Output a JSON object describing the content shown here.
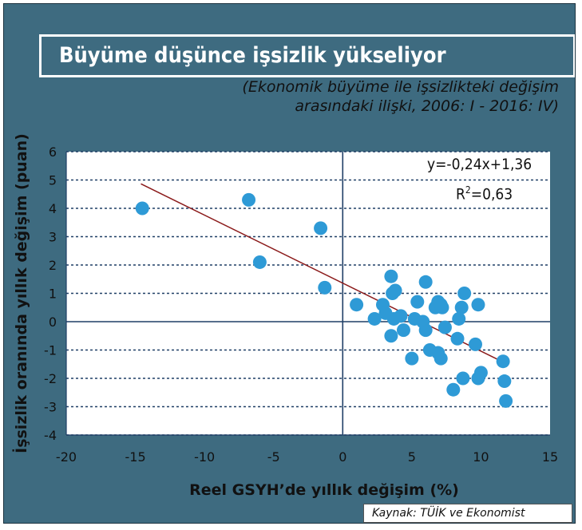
{
  "title": "Büyüme düşünce işsizlik yükseliyor",
  "subtitle_lines": [
    "(Ekonomik büyüme ile işsizlikteki değişim",
    "arasındaki ilişki, 2006: I - 2016: IV)"
  ],
  "source": "Kaynak: TÜİK ve Ekonomist",
  "colors": {
    "frame": "#3e6b80",
    "point": "#2e9ad6",
    "trend": "#8b1a1a",
    "grid": "#1f3f66"
  },
  "chart_data": {
    "type": "scatter",
    "xlabel": "Reel GSYH’de yıllık değişim (%)",
    "ylabel": "İşsizlik oranında yıllık değişim (puan)",
    "xlim": [
      -20,
      15
    ],
    "ylim": [
      -4,
      6
    ],
    "xticks": [
      -20,
      -15,
      -10,
      -5,
      0,
      5,
      10,
      15
    ],
    "yticks": [
      -4,
      -3,
      -2,
      -1,
      0,
      1,
      2,
      3,
      4,
      5,
      6
    ],
    "grid": "horizontal dashed",
    "equation": "y=-0,24x+1,36",
    "r2_label": "R",
    "r2_sup": "2",
    "r2_value": "=0,63",
    "trendline": {
      "slope": -0.24,
      "intercept": 1.36,
      "x_start": -14.6,
      "x_end": 11.7
    },
    "points": [
      {
        "x": -14.5,
        "y": 4.0
      },
      {
        "x": -6.8,
        "y": 4.3
      },
      {
        "x": -1.6,
        "y": 3.3
      },
      {
        "x": -6.0,
        "y": 2.1
      },
      {
        "x": -1.3,
        "y": 1.2
      },
      {
        "x": 1.0,
        "y": 0.6
      },
      {
        "x": 2.3,
        "y": 0.1
      },
      {
        "x": 2.9,
        "y": 0.6
      },
      {
        "x": 3.1,
        "y": 0.3
      },
      {
        "x": 3.5,
        "y": 1.6
      },
      {
        "x": 3.6,
        "y": 1.0
      },
      {
        "x": 3.8,
        "y": 1.1
      },
      {
        "x": 3.7,
        "y": 0.1
      },
      {
        "x": 3.5,
        "y": -0.5
      },
      {
        "x": 4.2,
        "y": 0.2
      },
      {
        "x": 4.4,
        "y": -0.3
      },
      {
        "x": 5.0,
        "y": -1.3
      },
      {
        "x": 5.2,
        "y": 0.1
      },
      {
        "x": 5.4,
        "y": 0.7
      },
      {
        "x": 5.8,
        "y": 0.0
      },
      {
        "x": 6.0,
        "y": 1.4
      },
      {
        "x": 6.0,
        "y": -0.3
      },
      {
        "x": 6.3,
        "y": -1.0
      },
      {
        "x": 6.7,
        "y": 0.5
      },
      {
        "x": 6.9,
        "y": 0.7
      },
      {
        "x": 7.1,
        "y": 0.6
      },
      {
        "x": 7.2,
        "y": 0.5
      },
      {
        "x": 6.9,
        "y": -1.1
      },
      {
        "x": 7.1,
        "y": -1.3
      },
      {
        "x": 7.4,
        "y": -0.2
      },
      {
        "x": 8.0,
        "y": -2.4
      },
      {
        "x": 8.3,
        "y": -0.6
      },
      {
        "x": 8.4,
        "y": 0.1
      },
      {
        "x": 8.6,
        "y": 0.5
      },
      {
        "x": 8.8,
        "y": 1.0
      },
      {
        "x": 8.7,
        "y": -2.0
      },
      {
        "x": 9.6,
        "y": -0.8
      },
      {
        "x": 9.8,
        "y": 0.6
      },
      {
        "x": 9.8,
        "y": -2.0
      },
      {
        "x": 10.0,
        "y": -1.8
      },
      {
        "x": 11.6,
        "y": -1.4
      },
      {
        "x": 11.7,
        "y": -2.1
      },
      {
        "x": 11.8,
        "y": -2.8
      }
    ]
  }
}
